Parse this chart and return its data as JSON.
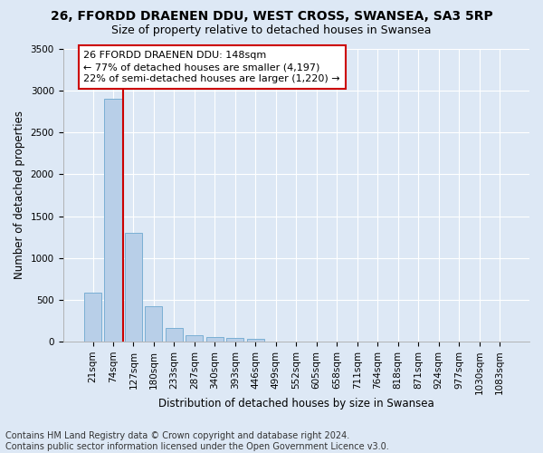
{
  "title": "26, FFORDD DRAENEN DDU, WEST CROSS, SWANSEA, SA3 5RP",
  "subtitle": "Size of property relative to detached houses in Swansea",
  "xlabel": "Distribution of detached houses by size in Swansea",
  "ylabel": "Number of detached properties",
  "categories": [
    "21sqm",
    "74sqm",
    "127sqm",
    "180sqm",
    "233sqm",
    "287sqm",
    "340sqm",
    "393sqm",
    "446sqm",
    "499sqm",
    "552sqm",
    "605sqm",
    "658sqm",
    "711sqm",
    "764sqm",
    "818sqm",
    "871sqm",
    "924sqm",
    "977sqm",
    "1030sqm",
    "1083sqm"
  ],
  "values": [
    580,
    2900,
    1300,
    420,
    160,
    75,
    55,
    45,
    35,
    0,
    0,
    0,
    0,
    0,
    0,
    0,
    0,
    0,
    0,
    0,
    0
  ],
  "bar_color": "#b8cfe8",
  "bar_edge_color": "#7aafd4",
  "vline_color": "#cc0000",
  "vline_pos": 1.5,
  "ylim": [
    0,
    3500
  ],
  "yticks": [
    0,
    500,
    1000,
    1500,
    2000,
    2500,
    3000,
    3500
  ],
  "annotation_text": "26 FFORDD DRAENEN DDU: 148sqm\n← 77% of detached houses are smaller (4,197)\n22% of semi-detached houses are larger (1,220) →",
  "annotation_box_facecolor": "#ffffff",
  "annotation_box_edgecolor": "#cc0000",
  "footer_line1": "Contains HM Land Registry data © Crown copyright and database right 2024.",
  "footer_line2": "Contains public sector information licensed under the Open Government Licence v3.0.",
  "background_color": "#dde8f5",
  "grid_color": "#ffffff",
  "title_fontsize": 10,
  "subtitle_fontsize": 9,
  "axis_label_fontsize": 8.5,
  "tick_fontsize": 7.5,
  "annotation_fontsize": 8,
  "footer_fontsize": 7
}
